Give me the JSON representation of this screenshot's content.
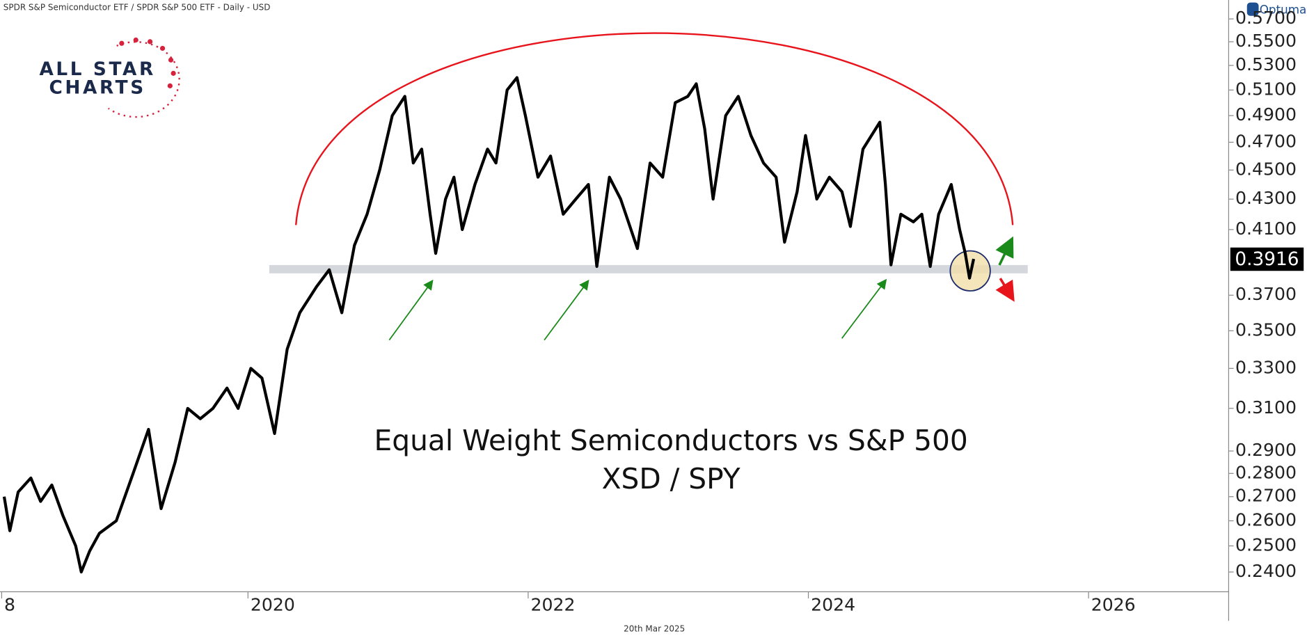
{
  "header": "SPDR S&P Semiconductor ETF / SPDR S&P 500 ETF - Daily - USD",
  "brand": "Optuma",
  "logo": {
    "line1": "ALL STAR",
    "line2": "CHARTS"
  },
  "footer": "20th Mar 2025",
  "chart_data": {
    "type": "line",
    "title": "Equal Weight Semiconductors vs S&P 500",
    "subtitle": "XSD / SPY",
    "log_scale": true,
    "grid": false,
    "xlim": [
      2018.23,
      2027.0
    ],
    "ylim": [
      0.2327,
      0.5871
    ],
    "xticks": [
      {
        "value": 2018,
        "label": "8"
      },
      2020,
      2022,
      2024,
      2026
    ],
    "yticks": [
      {
        "value": 0.24,
        "label": "0.2400"
      },
      {
        "value": 0.25,
        "label": "0.2500"
      },
      {
        "value": 0.26,
        "label": "0.2600"
      },
      {
        "value": 0.27,
        "label": "0.2700"
      },
      {
        "value": 0.28,
        "label": "0.2800"
      },
      {
        "value": 0.29,
        "label": "0.2900"
      },
      {
        "value": 0.31,
        "label": "0.3100"
      },
      {
        "value": 0.33,
        "label": "0.3300"
      },
      {
        "value": 0.35,
        "label": "0.3500"
      },
      {
        "value": 0.37,
        "label": "0.3700"
      },
      {
        "value": 0.41,
        "label": "0.4100"
      },
      {
        "value": 0.43,
        "label": "0.4300"
      },
      {
        "value": 0.45,
        "label": "0.4500"
      },
      {
        "value": 0.47,
        "label": "0.4700"
      },
      {
        "value": 0.49,
        "label": "0.4900"
      },
      {
        "value": 0.51,
        "label": "0.5100"
      },
      {
        "value": 0.53,
        "label": "0.5300"
      },
      {
        "value": 0.55,
        "label": "0.5500"
      },
      {
        "value": 0.57,
        "label": "0.5700"
      }
    ],
    "last_label": "0.3916",
    "series": [
      {
        "name": "XSD / SPY",
        "color": "#000000",
        "x": [
          2018.26,
          2018.3,
          2018.36,
          2018.45,
          2018.52,
          2018.6,
          2018.68,
          2018.77,
          2018.81,
          2018.87,
          2018.94,
          2019.06,
          2019.18,
          2019.29,
          2019.38,
          2019.48,
          2019.57,
          2019.66,
          2019.75,
          2019.85,
          2019.93,
          2020.02,
          2020.1,
          2020.19,
          2020.28,
          2020.37,
          2020.49,
          2020.58,
          2020.67,
          2020.76,
          2020.85,
          2020.94,
          2021.03,
          2021.12,
          2021.18,
          2021.24,
          2021.3,
          2021.34,
          2021.41,
          2021.47,
          2021.53,
          2021.62,
          2021.71,
          2021.77,
          2021.85,
          2021.92,
          2021.98,
          2022.07,
          2022.16,
          2022.25,
          2022.34,
          2022.43,
          2022.49,
          2022.58,
          2022.66,
          2022.78,
          2022.87,
          2022.96,
          2023.05,
          2023.14,
          2023.2,
          2023.26,
          2023.32,
          2023.41,
          2023.5,
          2023.59,
          2023.68,
          2023.77,
          2023.83,
          2023.92,
          2023.98,
          2024.06,
          2024.15,
          2024.24,
          2024.3,
          2024.39,
          2024.51,
          2024.55,
          2024.59,
          2024.66,
          2024.75,
          2024.81,
          2024.87,
          2024.93,
          2025.02,
          2025.08,
          2025.12,
          2025.15,
          2025.18
        ],
        "values": [
          0.27,
          0.256,
          0.272,
          0.278,
          0.268,
          0.275,
          0.262,
          0.25,
          0.24,
          0.248,
          0.255,
          0.26,
          0.28,
          0.3,
          0.265,
          0.285,
          0.31,
          0.305,
          0.31,
          0.32,
          0.31,
          0.33,
          0.325,
          0.298,
          0.34,
          0.36,
          0.375,
          0.385,
          0.36,
          0.4,
          0.42,
          0.45,
          0.49,
          0.505,
          0.455,
          0.465,
          0.42,
          0.395,
          0.43,
          0.445,
          0.41,
          0.44,
          0.465,
          0.455,
          0.51,
          0.52,
          0.49,
          0.445,
          0.46,
          0.42,
          0.43,
          0.44,
          0.387,
          0.445,
          0.43,
          0.398,
          0.455,
          0.445,
          0.5,
          0.505,
          0.515,
          0.48,
          0.43,
          0.49,
          0.505,
          0.475,
          0.455,
          0.445,
          0.402,
          0.435,
          0.475,
          0.43,
          0.445,
          0.435,
          0.412,
          0.465,
          0.485,
          0.44,
          0.388,
          0.42,
          0.415,
          0.42,
          0.387,
          0.42,
          0.44,
          0.41,
          0.395,
          0.38,
          0.3916
        ]
      }
    ]
  }
}
